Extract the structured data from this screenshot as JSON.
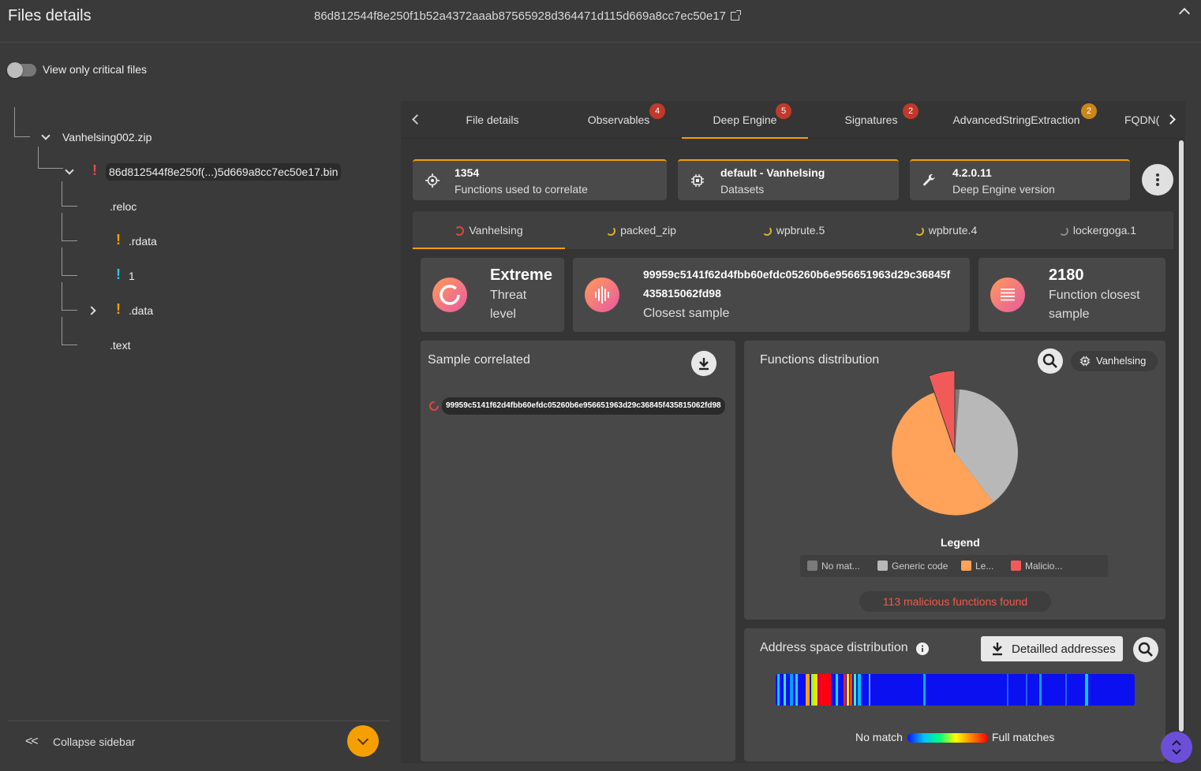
{
  "header": {
    "title": "Files details",
    "hash": "86d812544f8e250f1b52a4372aaab87565928d364471d115d669a8cc7ec50e17"
  },
  "filter": {
    "toggle_label": "View only critical files",
    "enabled": false
  },
  "tree": {
    "root": "Vanhelsing002.zip",
    "file": "86d812544f8e250f(...)5d669a8cc7ec50e17.bin",
    "sections": [
      ".reloc",
      ".rdata",
      "1",
      ".data",
      ".text"
    ]
  },
  "sidebar": {
    "collapse_label": "Collapse sidebar",
    "collapse_icon": "<<"
  },
  "tabs": [
    {
      "label": "File details",
      "badge": null
    },
    {
      "label": "Observables",
      "badge": "4"
    },
    {
      "label": "Deep Engine",
      "badge": "5"
    },
    {
      "label": "Signatures",
      "badge": "2"
    },
    {
      "label": "AdvancedStringExtraction",
      "badge": "2"
    },
    {
      "label": "FQDN(",
      "badge": null
    }
  ],
  "info_cards": [
    {
      "value": "1354",
      "label": "Functions used to correlate"
    },
    {
      "value": "default - Vanhelsing",
      "label": "Datasets"
    },
    {
      "value": "4.2.0.11",
      "label": "Deep Engine version"
    }
  ],
  "datasets": [
    "Vanhelsing",
    "packed_zip",
    "wpbrute.5",
    "wpbrute.4",
    "lockergoga.1"
  ],
  "stats": {
    "threat_value": "Extreme",
    "threat_label_1": "Threat",
    "threat_label_2": "level",
    "closest_hash_1": "99959c5141f62d4fbb60efdc05260b6e956651963d29c36845f",
    "closest_hash_2": "435815062fd98",
    "closest_label": "Closest sample",
    "function_count": "2180",
    "function_label_1": "Function closest",
    "function_label_2": "sample"
  },
  "sample_correlated": {
    "title": "Sample correlated",
    "item": "99959c5141f62d4fbb60efdc05260b6e956651963d29c36845f435815062fd98"
  },
  "functions_distribution": {
    "title": "Functions distribution",
    "dataset_chip": "Vanhelsing",
    "legend_title": "Legend",
    "legend": [
      {
        "label": "No mat...",
        "color": "#7a7a7a"
      },
      {
        "label": "Generic code",
        "color": "#b8b8b8"
      },
      {
        "label": "Le...",
        "color": "#ffa25a"
      },
      {
        "label": "Malicio...",
        "color": "#f25a5a"
      }
    ],
    "malicious_text": "113 malicious functions found"
  },
  "address_space": {
    "title": "Address space distribution",
    "button_label": "Detailled addresses",
    "scale_min": "No match",
    "scale_max": "Full matches"
  }
}
